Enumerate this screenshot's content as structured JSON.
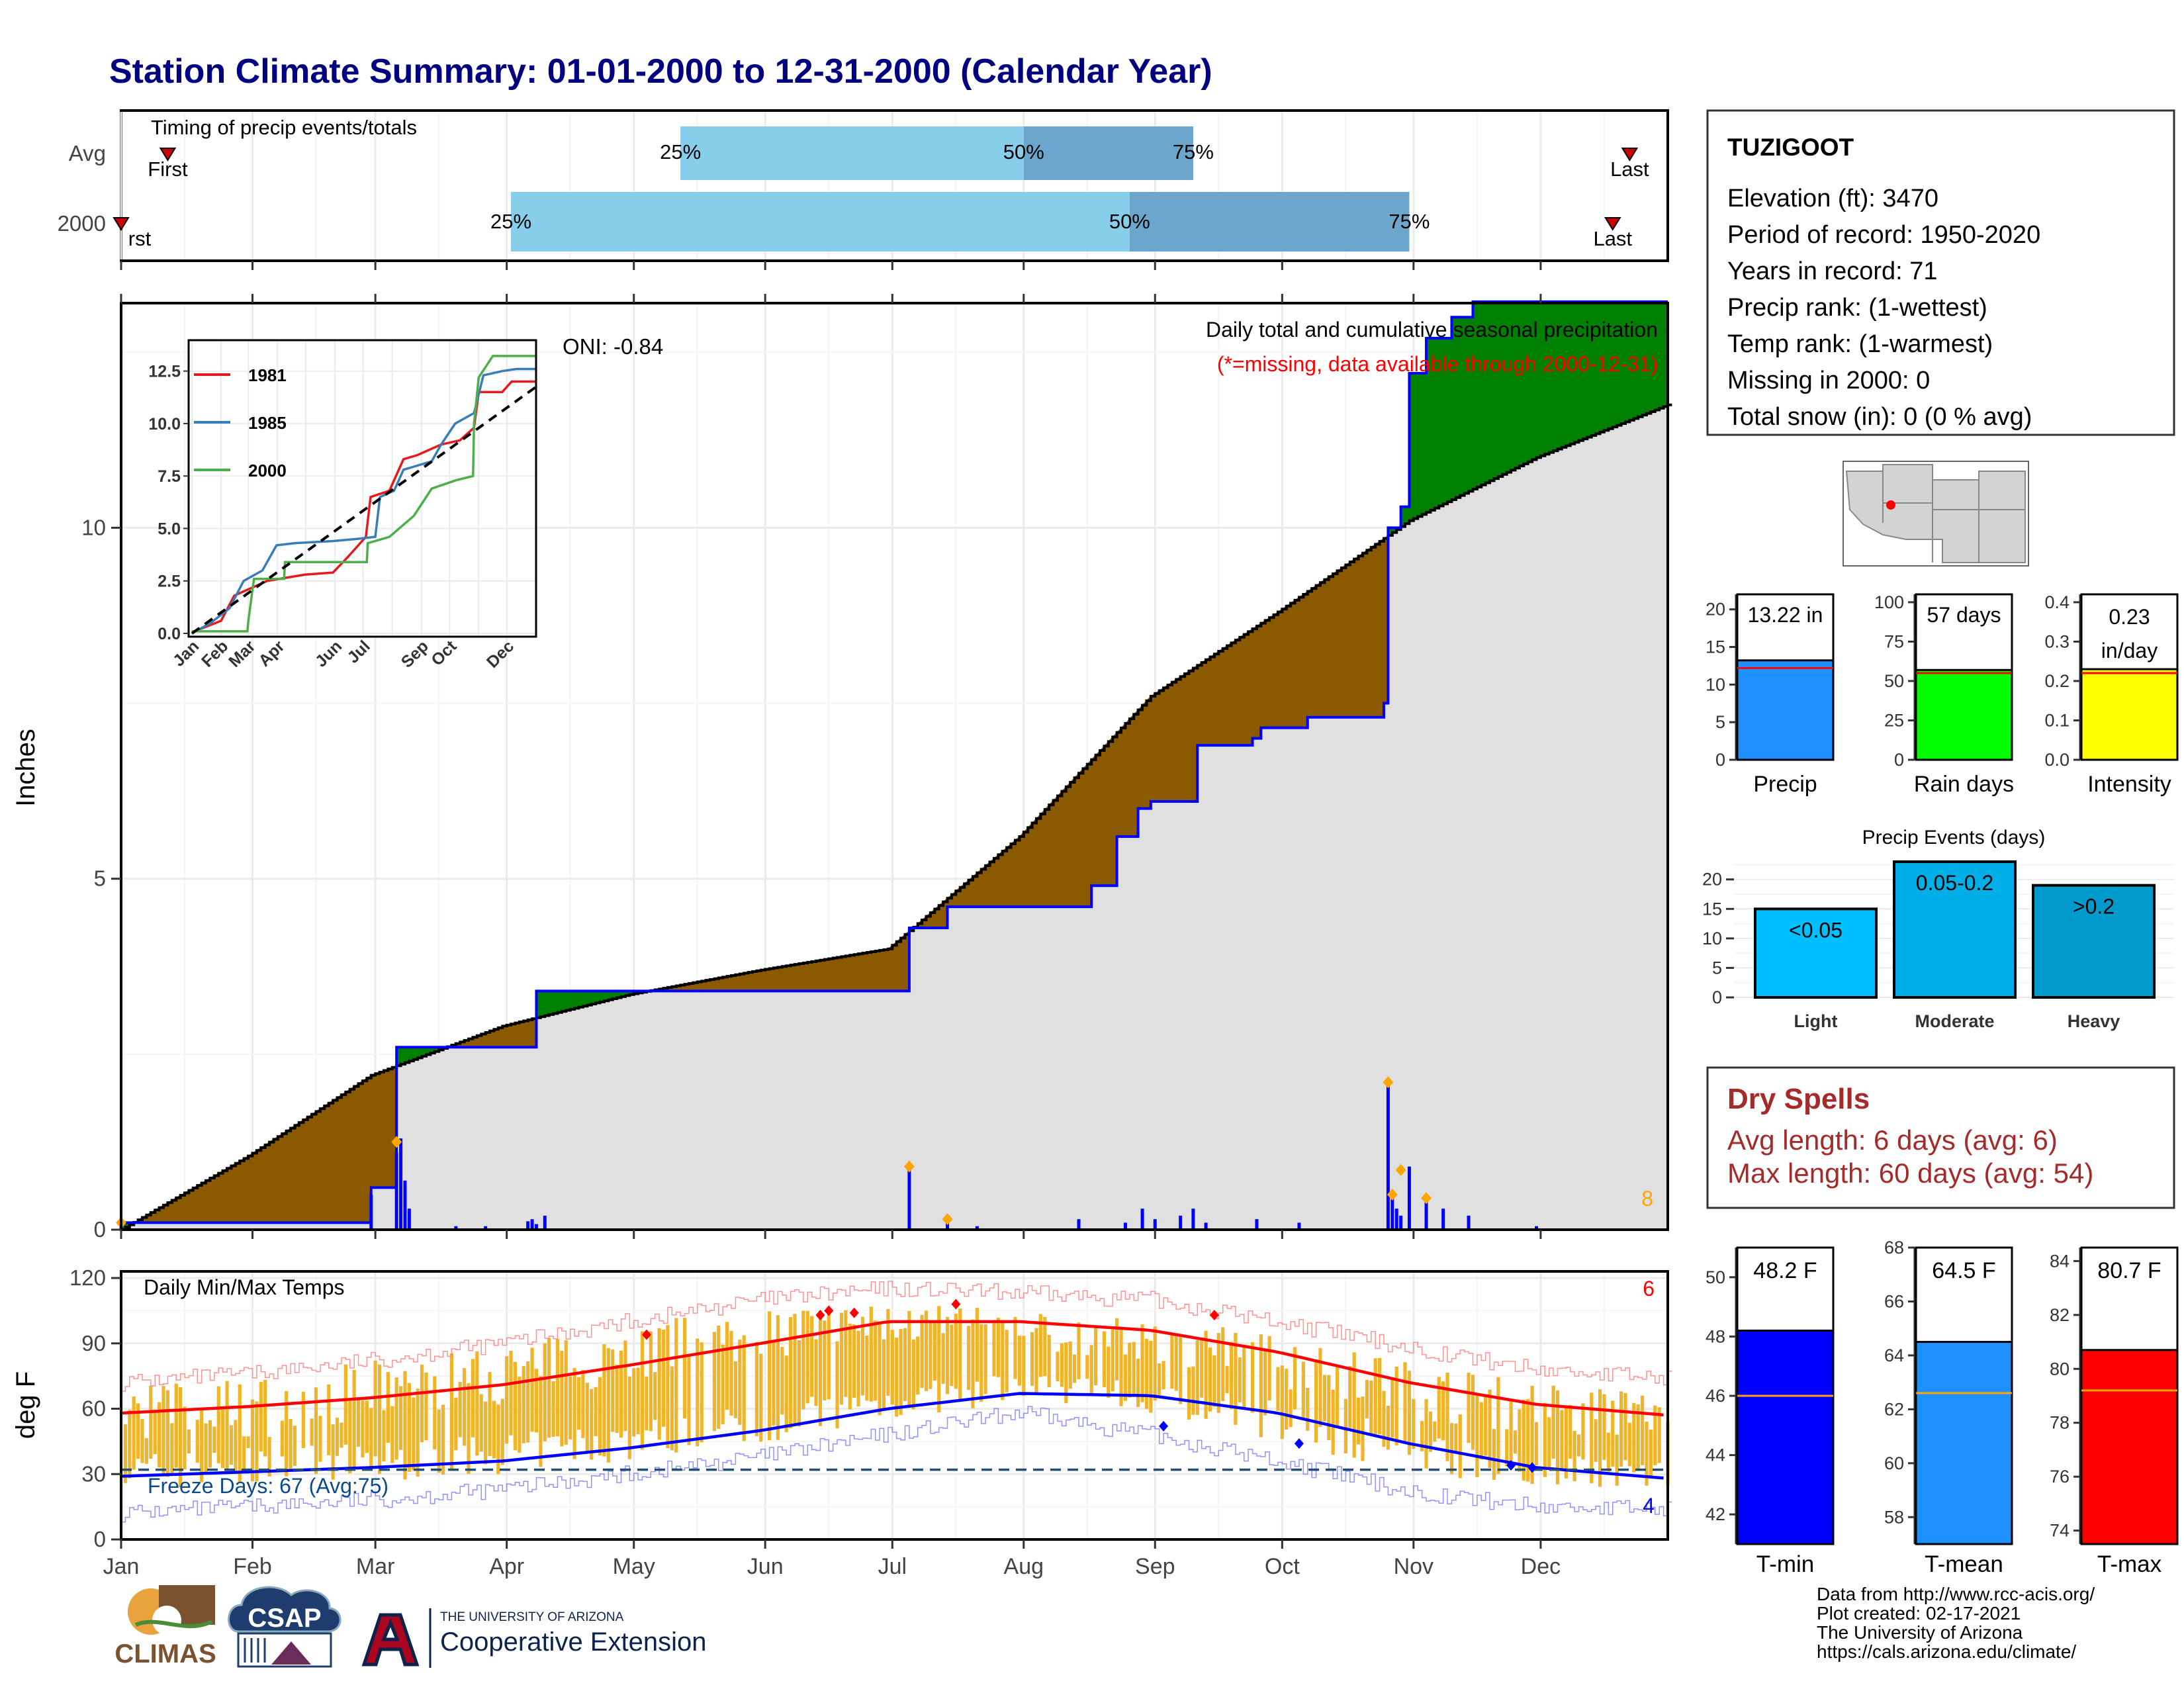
{
  "title": "Station Climate Summary: 01-01-2000 to 12-31-2000 (Calendar Year)",
  "colors": {
    "title": "#000080",
    "precip_line": "#0000ff",
    "above": "#008000",
    "below": "#8b5a00",
    "climo_fill": "#e0e0e0",
    "temp_bar": "#f0b429",
    "tmax_line": "#ff0000",
    "tmin_line": "#0000ff",
    "dry_spells": "#a52a2a",
    "light_blue": "#87ceeb",
    "mid_blue": "#6ca6cd"
  },
  "months": [
    "Jan",
    "Feb",
    "Mar",
    "Apr",
    "May",
    "Jun",
    "Jul",
    "Aug",
    "Sep",
    "Oct",
    "Nov",
    "Dec"
  ],
  "timing_panel": {
    "label": "Timing of precip events/totals",
    "row_labels": [
      "Avg",
      "2000"
    ],
    "first_label": "First",
    "first_label_2000": "rst",
    "last_label": "Last",
    "pct_labels": [
      "25%",
      "50%",
      "75%"
    ],
    "avg": {
      "first_day": 12,
      "p25": 133,
      "p50": 214,
      "p75": 254,
      "last_day": 357
    },
    "y2000": {
      "first_day": 1,
      "p25": 93,
      "p50": 239,
      "p75": 305,
      "last_day": 353
    }
  },
  "precip_panel": {
    "title": "Daily total and cumulative seasonal precipitation",
    "missing_note": "(*=missing, data available through 2000-12-31)",
    "oni_label": "ONI: -0.84",
    "ylabel": "Inches",
    "yticks": [
      "0",
      "5",
      "10"
    ],
    "ylim": [
      0,
      13.2
    ],
    "count_label": "8"
  },
  "chart_data": [
    {
      "type": "area",
      "title": "Daily total and cumulative seasonal precipitation",
      "ylabel": "Inches",
      "ylim": [
        0,
        13.2
      ],
      "x_unit": "day of year",
      "cumulative_2000": [
        [
          1,
          0.1
        ],
        [
          59,
          0.1
        ],
        [
          60,
          0.6
        ],
        [
          65,
          0.6
        ],
        [
          66,
          2.6
        ],
        [
          98,
          2.6
        ],
        [
          99,
          3.4
        ],
        [
          186,
          3.4
        ],
        [
          187,
          4.3
        ],
        [
          195,
          4.3
        ],
        [
          196,
          4.6
        ],
        [
          210,
          4.6
        ],
        [
          230,
          4.9
        ],
        [
          236,
          5.6
        ],
        [
          241,
          6.0
        ],
        [
          244,
          6.1
        ],
        [
          255,
          6.9
        ],
        [
          268,
          7.0
        ],
        [
          270,
          7.15
        ],
        [
          281,
          7.3
        ],
        [
          299,
          7.5
        ],
        [
          300,
          10.0
        ],
        [
          303,
          10.3
        ],
        [
          305,
          12.2
        ],
        [
          309,
          12.7
        ],
        [
          315,
          13.0
        ],
        [
          319,
          13.0
        ],
        [
          320,
          13.22
        ],
        [
          366,
          13.22
        ]
      ],
      "climatology_cumulative": [
        [
          1,
          0.0
        ],
        [
          31,
          1.05
        ],
        [
          60,
          2.2
        ],
        [
          91,
          2.9
        ],
        [
          121,
          3.35
        ],
        [
          152,
          3.7
        ],
        [
          182,
          4.0
        ],
        [
          213,
          5.6
        ],
        [
          244,
          7.6
        ],
        [
          274,
          8.8
        ],
        [
          305,
          10.1
        ],
        [
          335,
          11.0
        ],
        [
          366,
          11.75
        ]
      ],
      "daily_2000": [
        [
          1,
          0.1
        ],
        [
          60,
          0.5
        ],
        [
          66,
          1.1
        ],
        [
          67,
          1.3
        ],
        [
          68,
          0.7
        ],
        [
          69,
          0.3
        ],
        [
          80,
          0.05
        ],
        [
          87,
          0.05
        ],
        [
          97,
          0.12
        ],
        [
          98,
          0.15
        ],
        [
          99,
          0.08
        ],
        [
          101,
          0.2
        ],
        [
          187,
          0.9
        ],
        [
          196,
          0.1
        ],
        [
          203,
          0.05
        ],
        [
          227,
          0.15
        ],
        [
          238,
          0.1
        ],
        [
          242,
          0.3
        ],
        [
          245,
          0.15
        ],
        [
          251,
          0.2
        ],
        [
          254,
          0.3
        ],
        [
          257,
          0.1
        ],
        [
          269,
          0.15
        ],
        [
          279,
          0.1
        ],
        [
          300,
          2.1
        ],
        [
          301,
          0.5
        ],
        [
          302,
          0.3
        ],
        [
          303,
          0.2
        ],
        [
          305,
          0.9
        ],
        [
          309,
          0.4
        ],
        [
          313,
          0.3
        ],
        [
          319,
          0.2
        ],
        [
          335,
          0.05
        ]
      ],
      "flagged_days": [
        [
          1,
          0.1
        ],
        [
          66,
          1.25
        ],
        [
          187,
          0.9
        ],
        [
          196,
          0.15
        ],
        [
          300,
          2.1
        ],
        [
          301,
          0.5
        ],
        [
          303,
          0.85
        ],
        [
          309,
          0.45
        ]
      ]
    },
    {
      "type": "line",
      "title": "",
      "xlabel": "",
      "ylabel": "",
      "ylim": [
        0,
        13.5
      ],
      "categories": [
        "Jan",
        "Feb",
        "Mar",
        "Apr",
        "May",
        "Jun",
        "Jul",
        "Aug",
        "Sep",
        "Oct",
        "Nov",
        "Dec"
      ],
      "yticks": [
        "0.0",
        "2.5",
        "5.0",
        "7.5",
        "10.0",
        "12.5"
      ],
      "series": [
        {
          "name": "1981",
          "color": "#e41a1c",
          "points": [
            [
              0,
              0.05
            ],
            [
              31,
              0.6
            ],
            [
              45,
              1.8
            ],
            [
              60,
              2.1
            ],
            [
              80,
              2.5
            ],
            [
              120,
              2.8
            ],
            [
              150,
              2.9
            ],
            [
              165,
              3.6
            ],
            [
              185,
              4.6
            ],
            [
              190,
              6.5
            ],
            [
              210,
              6.8
            ],
            [
              225,
              8.3
            ],
            [
              240,
              8.5
            ],
            [
              265,
              9.0
            ],
            [
              285,
              9.2
            ],
            [
              300,
              9.8
            ],
            [
              305,
              11.5
            ],
            [
              330,
              11.5
            ],
            [
              340,
              12.0
            ],
            [
              366,
              12.0
            ]
          ]
        },
        {
          "name": "1985",
          "color": "#377eb8",
          "points": [
            [
              0,
              0.0
            ],
            [
              20,
              0.5
            ],
            [
              40,
              1.2
            ],
            [
              55,
              2.5
            ],
            [
              75,
              3.0
            ],
            [
              90,
              4.2
            ],
            [
              110,
              4.3
            ],
            [
              150,
              4.4
            ],
            [
              175,
              4.5
            ],
            [
              195,
              4.6
            ],
            [
              200,
              6.5
            ],
            [
              215,
              6.8
            ],
            [
              225,
              7.8
            ],
            [
              240,
              8.0
            ],
            [
              255,
              8.2
            ],
            [
              265,
              9.0
            ],
            [
              280,
              10.0
            ],
            [
              300,
              10.5
            ],
            [
              310,
              12.3
            ],
            [
              330,
              12.5
            ],
            [
              345,
              12.6
            ],
            [
              366,
              12.6
            ]
          ]
        },
        {
          "name": "2000",
          "color": "#4daf4a",
          "points": [
            [
              0,
              0.1
            ],
            [
              59,
              0.1
            ],
            [
              60,
              0.6
            ],
            [
              66,
              2.6
            ],
            [
              98,
              2.6
            ],
            [
              99,
              3.4
            ],
            [
              186,
              3.4
            ],
            [
              187,
              4.3
            ],
            [
              210,
              4.6
            ],
            [
              236,
              5.6
            ],
            [
              255,
              6.9
            ],
            [
              281,
              7.3
            ],
            [
              299,
              7.5
            ],
            [
              300,
              10.0
            ],
            [
              305,
              12.2
            ],
            [
              320,
              13.22
            ],
            [
              366,
              13.22
            ]
          ]
        },
        {
          "name": "",
          "color": "#000000",
          "dashed": true,
          "points": [
            [
              0,
              0.0
            ],
            [
              366,
              11.75
            ]
          ]
        }
      ]
    },
    {
      "type": "bar",
      "title": "Daily Min/Max Temps",
      "ylabel": "deg F",
      "ylim": [
        0,
        120
      ],
      "yticks": [
        "0",
        "30",
        "60",
        "90",
        "120"
      ],
      "categories": [
        "Jan",
        "Feb",
        "Mar",
        "Apr",
        "May",
        "Jun",
        "Jul",
        "Aug",
        "Sep",
        "Oct",
        "Nov",
        "Dec"
      ],
      "freeze_line": 32,
      "tmax_normal": [
        [
          1,
          58
        ],
        [
          31,
          61
        ],
        [
          60,
          65
        ],
        [
          91,
          71
        ],
        [
          121,
          80
        ],
        [
          152,
          90
        ],
        [
          182,
          100
        ],
        [
          213,
          100
        ],
        [
          244,
          96
        ],
        [
          274,
          86
        ],
        [
          305,
          72
        ],
        [
          335,
          62
        ],
        [
          366,
          57
        ]
      ],
      "tmin_normal": [
        [
          1,
          29
        ],
        [
          31,
          31
        ],
        [
          60,
          33
        ],
        [
          91,
          36
        ],
        [
          121,
          42
        ],
        [
          152,
          50
        ],
        [
          182,
          60
        ],
        [
          213,
          67
        ],
        [
          244,
          66
        ],
        [
          274,
          58
        ],
        [
          305,
          44
        ],
        [
          335,
          33
        ],
        [
          366,
          28
        ]
      ],
      "record_high": [
        [
          1,
          72
        ],
        [
          31,
          76
        ],
        [
          60,
          82
        ],
        [
          91,
          90
        ],
        [
          121,
          100
        ],
        [
          152,
          110
        ],
        [
          182,
          115
        ],
        [
          213,
          113
        ],
        [
          244,
          110
        ],
        [
          274,
          100
        ],
        [
          305,
          88
        ],
        [
          335,
          78
        ],
        [
          366,
          74
        ]
      ],
      "record_low": [
        [
          1,
          12
        ],
        [
          31,
          15
        ],
        [
          60,
          18
        ],
        [
          91,
          23
        ],
        [
          121,
          30
        ],
        [
          152,
          38
        ],
        [
          182,
          48
        ],
        [
          213,
          58
        ],
        [
          244,
          48
        ],
        [
          274,
          36
        ],
        [
          305,
          22
        ],
        [
          335,
          15
        ],
        [
          366,
          14
        ]
      ],
      "monthly_max_range": [
        [
          1,
          45,
          72
        ],
        [
          31,
          45,
          75
        ],
        [
          60,
          55,
          82
        ],
        [
          91,
          62,
          90
        ],
        [
          121,
          72,
          100
        ],
        [
          152,
          82,
          108
        ],
        [
          182,
          90,
          108
        ],
        [
          213,
          88,
          106
        ],
        [
          244,
          80,
          102
        ],
        [
          274,
          70,
          95
        ],
        [
          305,
          55,
          82
        ],
        [
          335,
          48,
          72
        ],
        [
          366,
          45,
          68
        ]
      ],
      "monthly_min_range": [
        [
          1,
          22,
          40
        ],
        [
          31,
          24,
          42
        ],
        [
          60,
          26,
          45
        ],
        [
          91,
          30,
          48
        ],
        [
          121,
          36,
          55
        ],
        [
          152,
          44,
          62
        ],
        [
          182,
          55,
          72
        ],
        [
          213,
          62,
          76
        ],
        [
          244,
          58,
          72
        ],
        [
          274,
          45,
          65
        ],
        [
          305,
          30,
          52
        ],
        [
          335,
          25,
          40
        ],
        [
          366,
          22,
          38
        ]
      ],
      "record_high_days": [
        [
          125,
          94
        ],
        [
          166,
          103
        ],
        [
          168,
          105
        ],
        [
          174,
          104
        ],
        [
          198,
          108
        ],
        [
          259,
          103
        ]
      ],
      "record_low_days": [
        [
          247,
          52
        ],
        [
          279,
          44
        ],
        [
          329,
          34
        ],
        [
          334,
          33
        ]
      ],
      "freeze_label": "Freeze Days: 67 (Avg:75)",
      "count_high": "6",
      "count_low": "4"
    }
  ],
  "station": {
    "name": "TUZIGOOT",
    "lines": [
      "Elevation (ft): 3470",
      "Period of record: 1950-2020",
      "Years in record: 71",
      "Precip rank:  (1-wettest)",
      "Temp rank:  (1-warmest)",
      "Missing in 2000: 0",
      "Total snow (in): 0 (0 % avg)"
    ]
  },
  "summary_bars": [
    {
      "label": "Precip",
      "value_label": "13.22 in",
      "value": 13.22,
      "avg": 12.2,
      "ylim": [
        0,
        22
      ],
      "yticks": [
        "0",
        "5",
        "10",
        "15",
        "20"
      ],
      "color": "#1e90ff"
    },
    {
      "label": "Rain days",
      "value_label": "57 days",
      "value": 57,
      "avg": 55,
      "ylim": [
        0,
        105
      ],
      "yticks": [
        "0",
        "25",
        "50",
        "75",
        "100"
      ],
      "color": "#00ff00"
    },
    {
      "label": "Intensity",
      "value_label_1": "0.23",
      "value_label_2": "in/day",
      "value": 0.23,
      "avg": 0.22,
      "ylim": [
        0,
        0.42
      ],
      "yticks": [
        "0.0",
        "0.1",
        "0.2",
        "0.3",
        "0.4"
      ],
      "color": "#ffff00"
    }
  ],
  "precip_events": {
    "title": "Precip Events (days)",
    "ylim": [
      0,
      23
    ],
    "yticks": [
      "0",
      "5",
      "10",
      "15",
      "20"
    ],
    "bars": [
      {
        "label": "Light",
        "value_label": "<0.05",
        "value": 15,
        "color": "#00bfff"
      },
      {
        "label": "Moderate",
        "value_label": "0.05-0.2",
        "value": 23,
        "color": "#00aee8"
      },
      {
        "label": "Heavy",
        "value_label": ">0.2",
        "value": 19,
        "color": "#009acd"
      }
    ]
  },
  "dry_spells": {
    "title": "Dry Spells",
    "avg_line": "Avg length: 6 days (avg: 6)",
    "max_line": "Max length: 60 days (avg: 54)"
  },
  "temp_bars": [
    {
      "label": "T-min",
      "value_label": "48.2 F",
      "value": 48.2,
      "avg": 46.0,
      "ylim": [
        41,
        51
      ],
      "yticks": [
        "42",
        "44",
        "46",
        "48",
        "50"
      ],
      "color": "#0000ff"
    },
    {
      "label": "T-mean",
      "value_label": "64.5 F",
      "value": 64.5,
      "avg": 62.6,
      "ylim": [
        57,
        68
      ],
      "yticks": [
        "58",
        "60",
        "62",
        "64",
        "66",
        "68"
      ],
      "color": "#1e90ff"
    },
    {
      "label": "T-max",
      "value_label": "80.7 F",
      "value": 80.7,
      "avg": 79.2,
      "ylim": [
        73.5,
        84.5
      ],
      "yticks": [
        "74",
        "76",
        "78",
        "80",
        "82",
        "84"
      ],
      "color": "#ff0000"
    }
  ],
  "footer": {
    "logos": {
      "climas": "CLIMAS",
      "csap": "CSAP",
      "ua_small": "THE UNIVERSITY OF ARIZONA",
      "ua_big": "Cooperative Extension"
    },
    "credits": [
      "Data from http://www.rcc-acis.org/",
      "Plot created: 02-17-2021",
      "The University of Arizona",
      "https://cals.arizona.edu/climate/"
    ]
  }
}
